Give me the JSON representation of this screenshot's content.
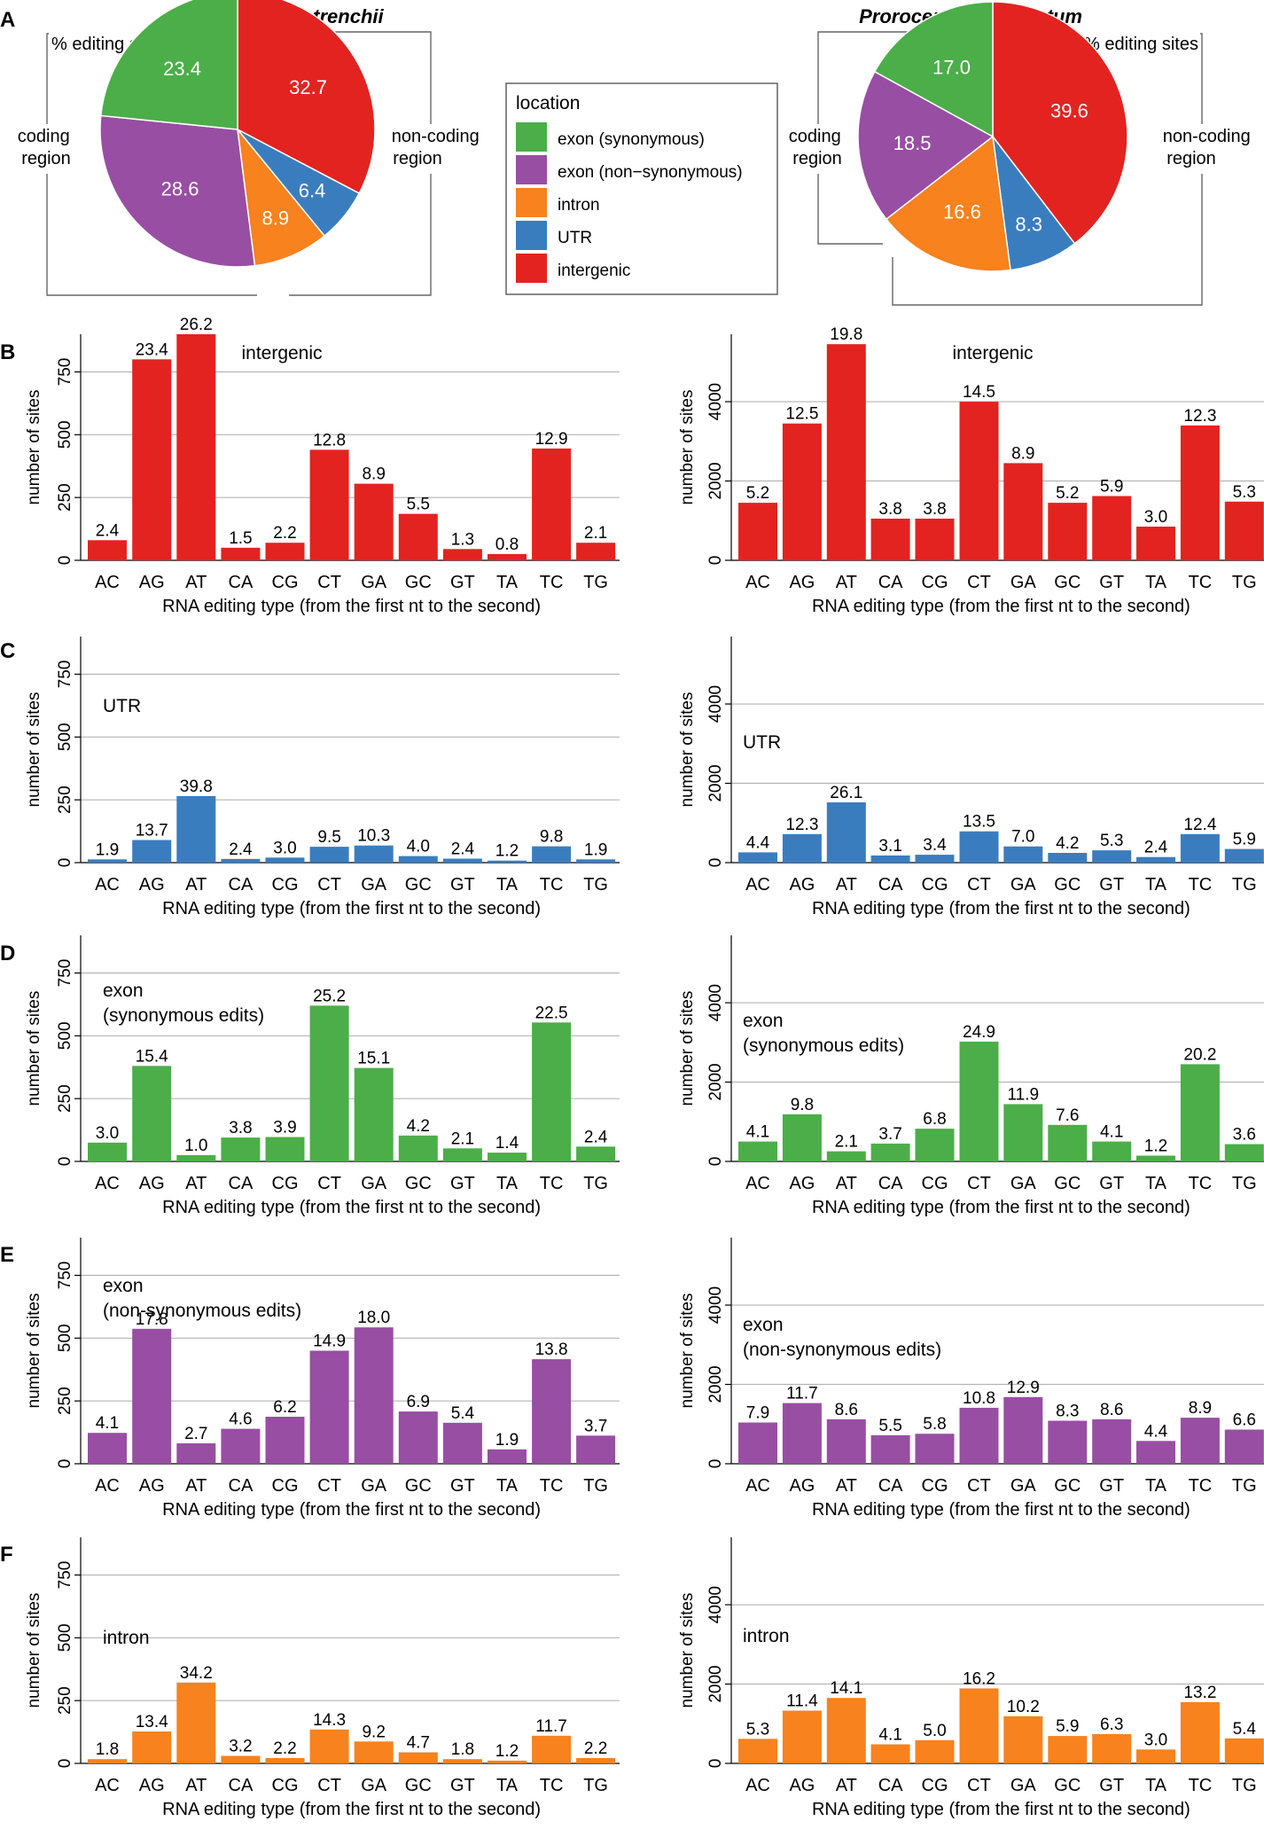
{
  "colors": {
    "exon_syn": "#4bae48",
    "exon_nonsyn": "#984ea3",
    "intron": "#f7821e",
    "utr": "#3a7dbf",
    "intergenic": "#e3231f",
    "grid": "#b5b5b5",
    "bracket": "#666666"
  },
  "panel_letters": [
    "A",
    "B",
    "C",
    "D",
    "E",
    "F"
  ],
  "pies": [
    {
      "id": "durusdinium",
      "title": "Durusdinium trenchii",
      "pct_label": "% editing sites",
      "coding_label": [
        "coding",
        "region"
      ],
      "noncoding_label": [
        "non-coding",
        "region"
      ],
      "slices": [
        {
          "category": "intergenic",
          "value": 32.7,
          "label": "32.7"
        },
        {
          "category": "utr",
          "value": 6.4,
          "label": "6.4"
        },
        {
          "category": "intron",
          "value": 8.9,
          "label": "8.9"
        },
        {
          "category": "exon_nonsyn",
          "value": 28.6,
          "label": "28.6"
        },
        {
          "category": "exon_syn",
          "value": 23.4,
          "label": "23.4"
        }
      ]
    },
    {
      "id": "prorocentrum",
      "title": "Prorocentrum cordatum",
      "pct_label": "% editing sites",
      "coding_label": [
        "coding",
        "region"
      ],
      "noncoding_label": [
        "non-coding",
        "region"
      ],
      "slices": [
        {
          "category": "intergenic",
          "value": 39.6,
          "label": "39.6"
        },
        {
          "category": "utr",
          "value": 8.3,
          "label": "8.3"
        },
        {
          "category": "intron",
          "value": 16.6,
          "label": "16.6"
        },
        {
          "category": "exon_nonsyn",
          "value": 18.5,
          "label": "18.5"
        },
        {
          "category": "exon_syn",
          "value": 17.0,
          "label": "17.0"
        }
      ]
    }
  ],
  "legend": {
    "title": "location",
    "items": [
      {
        "category": "exon_syn",
        "label": "exon (synonymous)"
      },
      {
        "category": "exon_nonsyn",
        "label": "exon (non−synonymous)"
      },
      {
        "category": "intron",
        "label": "intron"
      },
      {
        "category": "utr",
        "label": "UTR"
      },
      {
        "category": "intergenic",
        "label": "intergenic"
      }
    ]
  },
  "chart_data": [
    {
      "type": "bar",
      "panel": "B",
      "organism": "Durusdinium trenchii",
      "category": "intergenic",
      "title": [
        "intergenic"
      ],
      "categories": [
        "AC",
        "AG",
        "AT",
        "CA",
        "CG",
        "CT",
        "GA",
        "GC",
        "GT",
        "TA",
        "TC",
        "TG"
      ],
      "values": [
        80,
        800,
        900,
        50,
        70,
        440,
        305,
        185,
        45,
        25,
        445,
        70
      ],
      "pct_labels": [
        "2.4",
        "23.4",
        "26.2",
        "1.5",
        "2.2",
        "12.8",
        "8.9",
        "5.5",
        "1.3",
        "0.8",
        "12.9",
        "2.1"
      ],
      "xlabel": "RNA editing type (from the first nt to the second)",
      "ylabel": "number of sites",
      "ylim": [
        0,
        900
      ],
      "yticks": [
        0,
        250,
        500,
        750
      ]
    },
    {
      "type": "bar",
      "panel": "B",
      "organism": "Prorocentrum cordatum",
      "category": "intergenic",
      "title": [
        "intergenic"
      ],
      "categories": [
        "AC",
        "AG",
        "AT",
        "CA",
        "CG",
        "CT",
        "GA",
        "GC",
        "GT",
        "TA",
        "TC",
        "TG"
      ],
      "values": [
        1450,
        3450,
        5450,
        1050,
        1050,
        4000,
        2450,
        1450,
        1620,
        850,
        3400,
        1480
      ],
      "pct_labels": [
        "5.2",
        "12.5",
        "19.8",
        "3.8",
        "3.8",
        "14.5",
        "8.9",
        "5.2",
        "5.9",
        "3.0",
        "12.3",
        "5.3"
      ],
      "xlabel": "RNA editing type (from the first nt to the second)",
      "ylabel": "number of sites",
      "ylim": [
        0,
        5700
      ],
      "yticks": [
        0,
        2000,
        4000
      ]
    },
    {
      "type": "bar",
      "panel": "C",
      "organism": "Durusdinium trenchii",
      "category": "utr",
      "title": [
        "UTR"
      ],
      "categories": [
        "AC",
        "AG",
        "AT",
        "CA",
        "CG",
        "CT",
        "GA",
        "GC",
        "GT",
        "TA",
        "TC",
        "TG"
      ],
      "values": [
        13,
        90,
        265,
        15,
        20,
        63,
        68,
        26,
        16,
        8,
        65,
        13
      ],
      "pct_labels": [
        "1.9",
        "13.7",
        "39.8",
        "2.4",
        "3.0",
        "9.5",
        "10.3",
        "4.0",
        "2.4",
        "1.2",
        "9.8",
        "1.9"
      ],
      "xlabel": "RNA editing type (from the first nt to the second)",
      "ylabel": "number of sites",
      "ylim": [
        0,
        900
      ],
      "yticks": [
        0,
        250,
        500,
        750
      ]
    },
    {
      "type": "bar",
      "panel": "C",
      "organism": "Prorocentrum cordatum",
      "category": "utr",
      "title": [
        "UTR"
      ],
      "categories": [
        "AC",
        "AG",
        "AT",
        "CA",
        "CG",
        "CT",
        "GA",
        "GC",
        "GT",
        "TA",
        "TC",
        "TG"
      ],
      "values": [
        260,
        720,
        1520,
        180,
        200,
        790,
        410,
        245,
        310,
        140,
        720,
        345
      ],
      "pct_labels": [
        "4.4",
        "12.3",
        "26.1",
        "3.1",
        "3.4",
        "13.5",
        "7.0",
        "4.2",
        "5.3",
        "2.4",
        "12.4",
        "5.9"
      ],
      "xlabel": "RNA editing type (from the first nt to the second)",
      "ylabel": "number of sites",
      "ylim": [
        0,
        5700
      ],
      "yticks": [
        0,
        2000,
        4000
      ]
    },
    {
      "type": "bar",
      "panel": "D",
      "organism": "Durusdinium trenchii",
      "category": "exon_syn",
      "title": [
        "exon",
        "(synonymous edits)"
      ],
      "categories": [
        "AC",
        "AG",
        "AT",
        "CA",
        "CG",
        "CT",
        "GA",
        "GC",
        "GT",
        "TA",
        "TC",
        "TG"
      ],
      "values": [
        75,
        380,
        25,
        95,
        97,
        620,
        372,
        103,
        52,
        35,
        553,
        59
      ],
      "pct_labels": [
        "3.0",
        "15.4",
        "1.0",
        "3.8",
        "3.9",
        "25.2",
        "15.1",
        "4.2",
        "2.1",
        "1.4",
        "22.5",
        "2.4"
      ],
      "xlabel": "RNA editing type (from the first nt to the second)",
      "ylabel": "number of sites",
      "ylim": [
        0,
        900
      ],
      "yticks": [
        0,
        250,
        500,
        750
      ]
    },
    {
      "type": "bar",
      "panel": "D",
      "organism": "Prorocentrum cordatum",
      "category": "exon_syn",
      "title": [
        "exon",
        "(synonymous edits)"
      ],
      "categories": [
        "AC",
        "AG",
        "AT",
        "CA",
        "CG",
        "CT",
        "GA",
        "GC",
        "GT",
        "TA",
        "TC",
        "TG"
      ],
      "values": [
        500,
        1190,
        255,
        450,
        825,
        3020,
        1445,
        920,
        500,
        145,
        2450,
        435
      ],
      "pct_labels": [
        "4.1",
        "9.8",
        "2.1",
        "3.7",
        "6.8",
        "24.9",
        "11.9",
        "7.6",
        "4.1",
        "1.2",
        "20.2",
        "3.6"
      ],
      "xlabel": "RNA editing type (from the first nt to the second)",
      "ylabel": "number of sites",
      "ylim": [
        0,
        5700
      ],
      "yticks": [
        0,
        2000,
        4000
      ]
    },
    {
      "type": "bar",
      "panel": "E",
      "organism": "Durusdinium trenchii",
      "category": "exon_nonsyn",
      "title": [
        "exon",
        "(non-synonymous edits)"
      ],
      "categories": [
        "AC",
        "AG",
        "AT",
        "CA",
        "CG",
        "CT",
        "GA",
        "GC",
        "GT",
        "TA",
        "TC",
        "TG"
      ],
      "values": [
        123,
        537,
        81,
        139,
        187,
        450,
        543,
        208,
        163,
        57,
        416,
        112
      ],
      "pct_labels": [
        "4.1",
        "17.8",
        "2.7",
        "4.6",
        "6.2",
        "14.9",
        "18.0",
        "6.9",
        "5.4",
        "1.9",
        "13.8",
        "3.7"
      ],
      "xlabel": "RNA editing type (from the first nt to the second)",
      "ylabel": "number of sites",
      "ylim": [
        0,
        900
      ],
      "yticks": [
        0,
        250,
        500,
        750
      ]
    },
    {
      "type": "bar",
      "panel": "E",
      "organism": "Prorocentrum cordatum",
      "category": "exon_nonsyn",
      "title": [
        "exon",
        "(non-synonymous edits)"
      ],
      "categories": [
        "AC",
        "AG",
        "AT",
        "CA",
        "CG",
        "CT",
        "GA",
        "GC",
        "GT",
        "TA",
        "TC",
        "TG"
      ],
      "values": [
        1040,
        1530,
        1120,
        720,
        755,
        1410,
        1680,
        1085,
        1120,
        575,
        1160,
        860
      ],
      "pct_labels": [
        "7.9",
        "11.7",
        "8.6",
        "5.5",
        "5.8",
        "10.8",
        "12.9",
        "8.3",
        "8.6",
        "4.4",
        "8.9",
        "6.6"
      ],
      "xlabel": "RNA editing type (from the first nt to the second)",
      "ylabel": "number of sites",
      "ylim": [
        0,
        5700
      ],
      "yticks": [
        0,
        2000,
        4000
      ]
    },
    {
      "type": "bar",
      "panel": "F",
      "organism": "Durusdinium trenchii",
      "category": "intron",
      "title": [
        "intron"
      ],
      "categories": [
        "AC",
        "AG",
        "AT",
        "CA",
        "CG",
        "CT",
        "GA",
        "GC",
        "GT",
        "TA",
        "TC",
        "TG"
      ],
      "values": [
        17,
        127,
        322,
        30,
        21,
        135,
        87,
        44,
        17,
        11,
        110,
        21
      ],
      "pct_labels": [
        "1.8",
        "13.4",
        "34.2",
        "3.2",
        "2.2",
        "14.3",
        "9.2",
        "4.7",
        "1.8",
        "1.2",
        "11.7",
        "2.2"
      ],
      "xlabel": "RNA editing type (from the first nt to the second)",
      "ylabel": "number of sites",
      "ylim": [
        0,
        900
      ],
      "yticks": [
        0,
        250,
        500,
        750
      ]
    },
    {
      "type": "bar",
      "panel": "F",
      "organism": "Prorocentrum cordatum",
      "category": "intron",
      "title": [
        "intron"
      ],
      "categories": [
        "AC",
        "AG",
        "AT",
        "CA",
        "CG",
        "CT",
        "GA",
        "GC",
        "GT",
        "TA",
        "TC",
        "TG"
      ],
      "values": [
        620,
        1330,
        1650,
        480,
        585,
        1890,
        1190,
        690,
        740,
        350,
        1545,
        630
      ],
      "pct_labels": [
        "5.3",
        "11.4",
        "14.1",
        "4.1",
        "5.0",
        "16.2",
        "10.2",
        "5.9",
        "6.3",
        "3.0",
        "13.2",
        "5.4"
      ],
      "xlabel": "RNA editing type (from the first nt to the second)",
      "ylabel": "number of sites",
      "ylim": [
        0,
        5700
      ],
      "yticks": [
        0,
        2000,
        4000
      ]
    }
  ]
}
